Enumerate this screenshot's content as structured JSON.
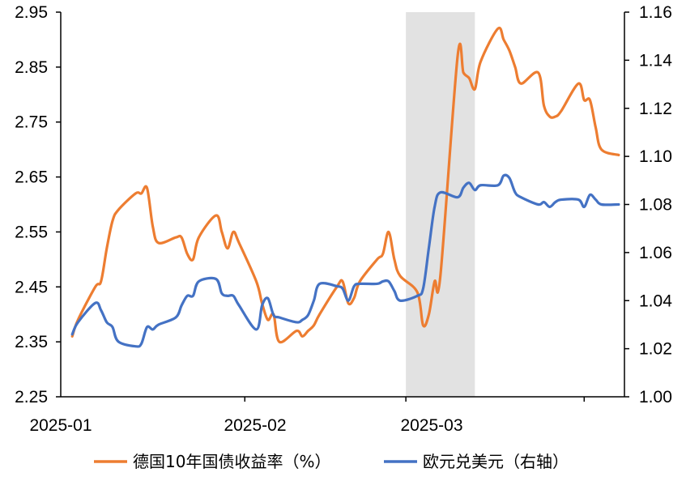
{
  "chart_data": {
    "type": "line",
    "title": "",
    "xlabel": "",
    "ylabel": "",
    "x_tick_labels": [
      "2025-01",
      "2025-02",
      "2025-03"
    ],
    "y_left_ticks": [
      "2.25",
      "2.35",
      "2.45",
      "2.55",
      "2.65",
      "2.75",
      "2.85",
      "2.95"
    ],
    "y_right_ticks": [
      "1.00",
      "1.02",
      "1.04",
      "1.06",
      "1.08",
      "1.10",
      "1.12",
      "1.14",
      "1.16"
    ],
    "y_left_range": [
      2.25,
      2.95
    ],
    "y_right_range": [
      1.0,
      1.16
    ],
    "highlight": {
      "from": "2025-03-01",
      "to": "2025-03-13",
      "color": "#e2e2e2"
    },
    "legend_position": "bottom",
    "series": [
      {
        "name": "德国10年国债收益率（%）",
        "axis": "left",
        "color": "#ed7d31",
        "points": [
          [
            "2025-01-02",
            2.36
          ],
          [
            "2025-01-03",
            2.39
          ],
          [
            "2025-01-06",
            2.45
          ],
          [
            "2025-01-07",
            2.46
          ],
          [
            "2025-01-08",
            2.52
          ],
          [
            "2025-01-09",
            2.57
          ],
          [
            "2025-01-10",
            2.59
          ],
          [
            "2025-01-13",
            2.62
          ],
          [
            "2025-01-14",
            2.62
          ],
          [
            "2025-01-15",
            2.63
          ],
          [
            "2025-01-16",
            2.56
          ],
          [
            "2025-01-17",
            2.53
          ],
          [
            "2025-01-20",
            2.54
          ],
          [
            "2025-01-21",
            2.54
          ],
          [
            "2025-01-22",
            2.51
          ],
          [
            "2025-01-23",
            2.5
          ],
          [
            "2025-01-24",
            2.54
          ],
          [
            "2025-01-27",
            2.58
          ],
          [
            "2025-01-28",
            2.55
          ],
          [
            "2025-01-29",
            2.52
          ],
          [
            "2025-01-30",
            2.55
          ],
          [
            "2025-01-31",
            2.53
          ],
          [
            "2025-02-03",
            2.46
          ],
          [
            "2025-02-04",
            2.42
          ],
          [
            "2025-02-05",
            2.39
          ],
          [
            "2025-02-06",
            2.4
          ],
          [
            "2025-02-07",
            2.35
          ],
          [
            "2025-02-10",
            2.37
          ],
          [
            "2025-02-11",
            2.36
          ],
          [
            "2025-02-12",
            2.37
          ],
          [
            "2025-02-13",
            2.38
          ],
          [
            "2025-02-14",
            2.4
          ],
          [
            "2025-02-17",
            2.45
          ],
          [
            "2025-02-18",
            2.46
          ],
          [
            "2025-02-19",
            2.42
          ],
          [
            "2025-02-20",
            2.43
          ],
          [
            "2025-02-21",
            2.46
          ],
          [
            "2025-02-24",
            2.5
          ],
          [
            "2025-02-25",
            2.51
          ],
          [
            "2025-02-26",
            2.55
          ],
          [
            "2025-02-27",
            2.5
          ],
          [
            "2025-02-28",
            2.47
          ],
          [
            "2025-03-03",
            2.44
          ],
          [
            "2025-03-04",
            2.38
          ],
          [
            "2025-03-05",
            2.4
          ],
          [
            "2025-03-06",
            2.46
          ],
          [
            "2025-03-07",
            2.47
          ],
          [
            "2025-03-10",
            2.87
          ],
          [
            "2025-03-11",
            2.84
          ],
          [
            "2025-03-12",
            2.83
          ],
          [
            "2025-03-13",
            2.81
          ],
          [
            "2025-03-14",
            2.86
          ],
          [
            "2025-03-17",
            2.92
          ],
          [
            "2025-03-18",
            2.9
          ],
          [
            "2025-03-19",
            2.88
          ],
          [
            "2025-03-20",
            2.85
          ],
          [
            "2025-03-21",
            2.82
          ],
          [
            "2025-03-24",
            2.84
          ],
          [
            "2025-03-25",
            2.78
          ],
          [
            "2025-03-26",
            2.76
          ],
          [
            "2025-03-27",
            2.76
          ],
          [
            "2025-03-28",
            2.77
          ],
          [
            "2025-03-31",
            2.82
          ],
          [
            "2025-04-01",
            2.79
          ],
          [
            "2025-04-02",
            2.79
          ],
          [
            "2025-04-03",
            2.74
          ],
          [
            "2025-04-04",
            2.7
          ],
          [
            "2025-04-07",
            2.69
          ]
        ]
      },
      {
        "name": "欧元兑美元（右轴）",
        "axis": "right",
        "color": "#4472c4",
        "points": [
          [
            "2025-01-02",
            1.026
          ],
          [
            "2025-01-03",
            1.031
          ],
          [
            "2025-01-06",
            1.039
          ],
          [
            "2025-01-07",
            1.036
          ],
          [
            "2025-01-08",
            1.031
          ],
          [
            "2025-01-09",
            1.029
          ],
          [
            "2025-01-10",
            1.023
          ],
          [
            "2025-01-13",
            1.021
          ],
          [
            "2025-01-14",
            1.022
          ],
          [
            "2025-01-15",
            1.029
          ],
          [
            "2025-01-16",
            1.028
          ],
          [
            "2025-01-17",
            1.03
          ],
          [
            "2025-01-20",
            1.033
          ],
          [
            "2025-01-21",
            1.038
          ],
          [
            "2025-01-22",
            1.042
          ],
          [
            "2025-01-23",
            1.042
          ],
          [
            "2025-01-24",
            1.048
          ],
          [
            "2025-01-27",
            1.049
          ],
          [
            "2025-01-28",
            1.043
          ],
          [
            "2025-01-29",
            1.042
          ],
          [
            "2025-01-30",
            1.042
          ],
          [
            "2025-01-31",
            1.038
          ],
          [
            "2025-02-03",
            1.028
          ],
          [
            "2025-02-04",
            1.038
          ],
          [
            "2025-02-05",
            1.041
          ],
          [
            "2025-02-06",
            1.034
          ],
          [
            "2025-02-07",
            1.033
          ],
          [
            "2025-02-10",
            1.031
          ],
          [
            "2025-02-11",
            1.032
          ],
          [
            "2025-02-12",
            1.034
          ],
          [
            "2025-02-13",
            1.04
          ],
          [
            "2025-02-14",
            1.047
          ],
          [
            "2025-02-17",
            1.046
          ],
          [
            "2025-02-18",
            1.045
          ],
          [
            "2025-02-19",
            1.04
          ],
          [
            "2025-02-20",
            1.046
          ],
          [
            "2025-02-21",
            1.047
          ],
          [
            "2025-02-24",
            1.047
          ],
          [
            "2025-02-25",
            1.048
          ],
          [
            "2025-02-26",
            1.048
          ],
          [
            "2025-02-27",
            1.044
          ],
          [
            "2025-02-28",
            1.04
          ],
          [
            "2025-03-03",
            1.042
          ],
          [
            "2025-03-04",
            1.045
          ],
          [
            "2025-03-05",
            1.062
          ],
          [
            "2025-03-06",
            1.079
          ],
          [
            "2025-03-07",
            1.085
          ],
          [
            "2025-03-10",
            1.083
          ],
          [
            "2025-03-11",
            1.087
          ],
          [
            "2025-03-12",
            1.089
          ],
          [
            "2025-03-13",
            1.086
          ],
          [
            "2025-03-14",
            1.088
          ],
          [
            "2025-03-17",
            1.088
          ],
          [
            "2025-03-18",
            1.092
          ],
          [
            "2025-03-19",
            1.091
          ],
          [
            "2025-03-20",
            1.085
          ],
          [
            "2025-03-21",
            1.083
          ],
          [
            "2025-03-24",
            1.08
          ],
          [
            "2025-03-25",
            1.081
          ],
          [
            "2025-03-26",
            1.079
          ],
          [
            "2025-03-27",
            1.081
          ],
          [
            "2025-03-28",
            1.082
          ],
          [
            "2025-03-31",
            1.082
          ],
          [
            "2025-04-01",
            1.079
          ],
          [
            "2025-04-02",
            1.084
          ],
          [
            "2025-04-03",
            1.082
          ],
          [
            "2025-04-04",
            1.08
          ],
          [
            "2025-04-07",
            1.08
          ]
        ]
      }
    ]
  }
}
